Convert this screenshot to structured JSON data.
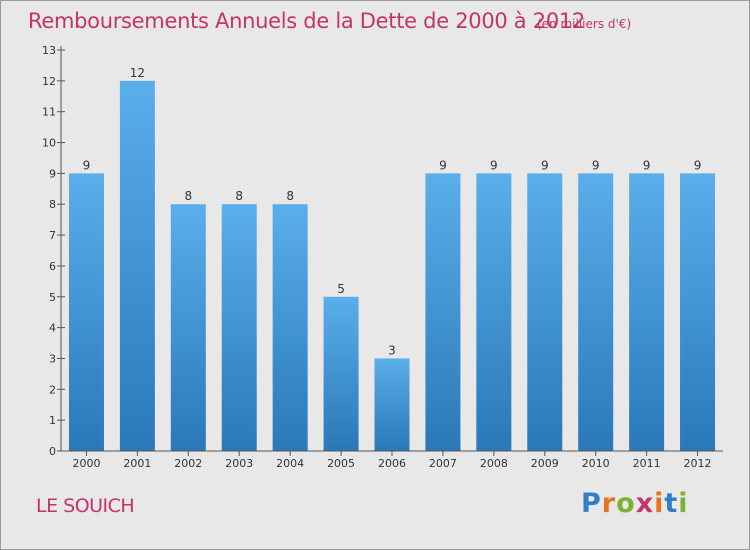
{
  "header": {
    "title": "Remboursements Annuels de la Dette de 2000 à 2012",
    "subtitle": "(en milliers d'€)"
  },
  "footer": {
    "place": "LE SOUICH",
    "logo_text": "Proxiti"
  },
  "colors": {
    "title": "#c4336a",
    "bar_top": "#5aaeea",
    "bar_bottom": "#2a78b8",
    "plot_background": "#e8e8e8",
    "logo_letters": [
      "#2e7fc7",
      "#e8731f",
      "#7ab32e",
      "#c4336a",
      "#e8731f",
      "#2e7fc7",
      "#7ab32e"
    ]
  },
  "chart_data": {
    "type": "bar",
    "categories": [
      "2000",
      "2001",
      "2002",
      "2003",
      "2004",
      "2005",
      "2006",
      "2007",
      "2008",
      "2009",
      "2010",
      "2011",
      "2012"
    ],
    "values": [
      9,
      12,
      8,
      8,
      8,
      5,
      3,
      9,
      9,
      9,
      9,
      9,
      9
    ],
    "ylim": [
      0,
      13
    ],
    "yticks": [
      "0",
      "1",
      "2",
      "3",
      "4",
      "5",
      "6",
      "7",
      "8",
      "9",
      "10",
      "11",
      "12",
      "13"
    ],
    "grid": false,
    "legend": "none"
  }
}
